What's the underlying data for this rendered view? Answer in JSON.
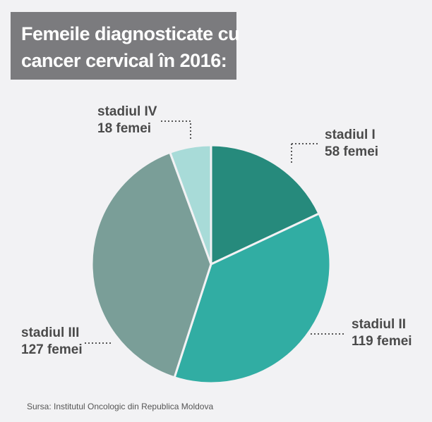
{
  "title": {
    "line1": "Femeile diagnosticate cu",
    "line2": "cancer cervical în 2016:"
  },
  "source": "Sursa: Institutul Oncologic din Republica Moldova",
  "chart_data": {
    "type": "pie",
    "title": "Femeile diagnosticate cu cancer cervical în 2016:",
    "unit": "femei",
    "slices": [
      {
        "label": "stadiul I",
        "value": 58,
        "value_text": "58 femei",
        "color": "#268a7c"
      },
      {
        "label": "stadiul II",
        "value": 119,
        "value_text": "119 femei",
        "color": "#31ada3"
      },
      {
        "label": "stadiul III",
        "value": 127,
        "value_text": "127 femei",
        "color": "#7a9e98"
      },
      {
        "label": "stadiul IV",
        "value": 18,
        "value_text": "18 femei",
        "color": "#a8dbd8"
      }
    ]
  }
}
